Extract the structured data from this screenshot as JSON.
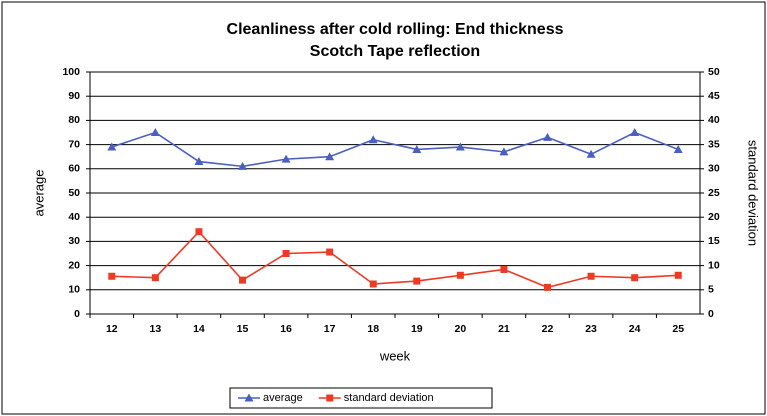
{
  "chart_data": {
    "type": "line",
    "title": [
      "Cleanliness after cold rolling: End thickness",
      "Scotch Tape reflection"
    ],
    "xlabel": "week",
    "ylabel": "average",
    "y2label": "standard deviation",
    "categories": [
      "12",
      "13",
      "14",
      "15",
      "16",
      "17",
      "18",
      "19",
      "20",
      "21",
      "22",
      "23",
      "24",
      "25"
    ],
    "series": [
      {
        "name": "average",
        "color": "#4a5fc1",
        "marker": "triangle",
        "axis": "y",
        "values": [
          69,
          75,
          63,
          61,
          64,
          65,
          72,
          68,
          69,
          67,
          73,
          66,
          75,
          68
        ]
      },
      {
        "name": "standard deviation",
        "color": "#ee3a24",
        "marker": "square",
        "axis": "y2",
        "values": [
          7.8,
          7.5,
          17,
          7,
          12.5,
          12.8,
          6.2,
          6.8,
          8,
          9.2,
          5.5,
          7.8,
          7.5,
          8
        ]
      }
    ],
    "ylim": [
      0,
      100
    ],
    "yticks": [
      0,
      10,
      20,
      30,
      40,
      50,
      60,
      70,
      80,
      90,
      100
    ],
    "y2lim": [
      0,
      50
    ],
    "y2ticks": [
      0,
      5,
      10,
      15,
      20,
      25,
      30,
      35,
      40,
      45,
      50
    ],
    "grid": true,
    "legend": "bottom"
  }
}
